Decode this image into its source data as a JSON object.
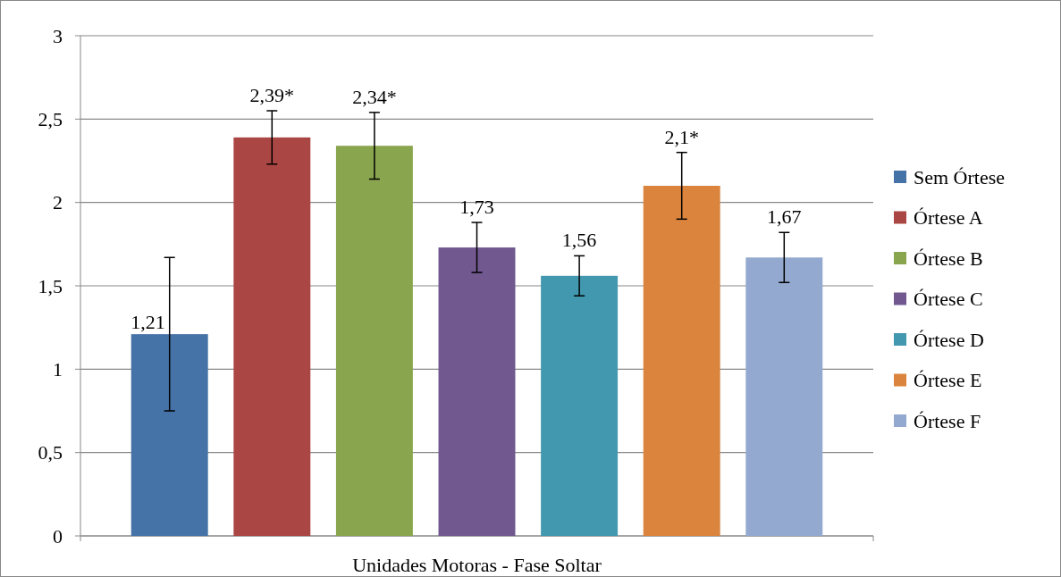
{
  "chart_data": {
    "type": "bar",
    "categories": [
      "Unidades Motoras - Fase Soltar"
    ],
    "series": [
      {
        "name": "Sem Órtese",
        "color": "#4572a7",
        "values": [
          1.21
        ],
        "errors": [
          0.46
        ],
        "value_labels": [
          "1,21"
        ]
      },
      {
        "name": "Órtese A",
        "color": "#aa4643",
        "values": [
          2.39
        ],
        "errors": [
          0.16
        ],
        "value_labels": [
          "2,39*"
        ]
      },
      {
        "name": "Órtese B",
        "color": "#89a54e",
        "values": [
          2.34
        ],
        "errors": [
          0.2
        ],
        "value_labels": [
          "2,34*"
        ]
      },
      {
        "name": "Órtese C",
        "color": "#71588f",
        "values": [
          1.73
        ],
        "errors": [
          0.15
        ],
        "value_labels": [
          "1,73"
        ]
      },
      {
        "name": "Órtese D",
        "color": "#4198af",
        "values": [
          1.56
        ],
        "errors": [
          0.12
        ],
        "value_labels": [
          "1,56"
        ]
      },
      {
        "name": "Órtese E",
        "color": "#db843d",
        "values": [
          2.1
        ],
        "errors": [
          0.2
        ],
        "value_labels": [
          "2,1*"
        ]
      },
      {
        "name": "Órtese F",
        "color": "#93a9cf",
        "values": [
          1.67
        ],
        "errors": [
          0.15
        ],
        "value_labels": [
          "1,67"
        ]
      }
    ],
    "ylim": [
      0,
      3
    ],
    "yticks": [
      0,
      {
        "value": 0.5,
        "label": "0,5"
      },
      1,
      {
        "value": 1.5,
        "label": "1,5"
      },
      2,
      {
        "value": 2.5,
        "label": "2,5"
      },
      3
    ],
    "grid": "y",
    "legend": "right"
  }
}
